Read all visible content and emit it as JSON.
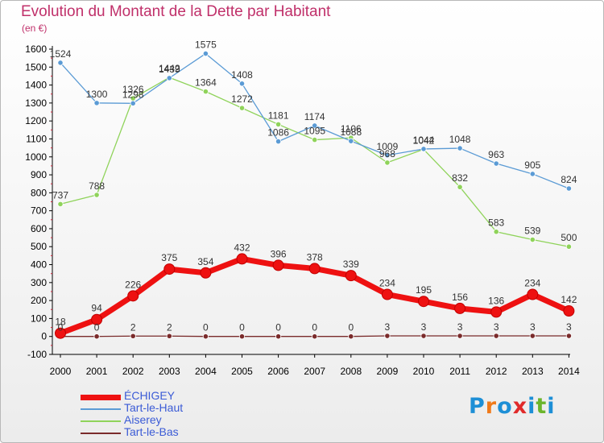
{
  "header": {
    "title": "Evolution du Montant de la Dette par Habitant",
    "subtitle": "(en €)"
  },
  "logo": {
    "text": "Proxiti",
    "colors": [
      "#1d8fd6",
      "#f07a1a",
      "#1d8fd6",
      "#e02a2a",
      "#1d8fd6",
      "#6cb52c",
      "#1d8fd6"
    ]
  },
  "colors": {
    "title": "#c0306a",
    "legend_text": "#3b5bd6",
    "axis": "#000000",
    "grid_marks": "#d0203a"
  },
  "chart_data": {
    "type": "line",
    "title": "Evolution du Montant de la Dette par Habitant",
    "subtitle": "(en €)",
    "xlabel": "",
    "ylabel": "",
    "x": [
      2000,
      2001,
      2002,
      2003,
      2004,
      2005,
      2006,
      2007,
      2008,
      2009,
      2010,
      2011,
      2012,
      2013,
      2014
    ],
    "ylim": [
      -100,
      1600
    ],
    "yticks": [
      -100,
      0,
      100,
      200,
      300,
      400,
      500,
      600,
      700,
      800,
      900,
      1000,
      1100,
      1200,
      1300,
      1400,
      1500,
      1600
    ],
    "grid": false,
    "legend_position": "bottom-left",
    "series": [
      {
        "name": "ÉCHIGEY",
        "color": "#ee1111",
        "width": 7,
        "values": [
          18,
          94,
          226,
          375,
          354,
          432,
          396,
          378,
          339,
          234,
          195,
          156,
          136,
          234,
          142
        ]
      },
      {
        "name": "Tart-le-Haut",
        "color": "#5b9bd5",
        "width": 1.3,
        "values": [
          1524,
          1300,
          1298,
          1439,
          1575,
          1408,
          1086,
          1174,
          1088,
          1009,
          1044,
          1048,
          963,
          905,
          824
        ]
      },
      {
        "name": "Aiserey",
        "color": "#8fd35a",
        "width": 1.3,
        "values": [
          737,
          788,
          1326,
          1442,
          1364,
          1272,
          1181,
          1095,
          1106,
          968,
          1042,
          832,
          583,
          539,
          500
        ]
      },
      {
        "name": "Tart-le-Bas",
        "color": "#7a2b2b",
        "width": 1.3,
        "values": [
          0,
          0,
          2,
          2,
          0,
          0,
          0,
          0,
          0,
          3,
          3,
          3,
          3,
          3,
          3
        ]
      }
    ]
  }
}
